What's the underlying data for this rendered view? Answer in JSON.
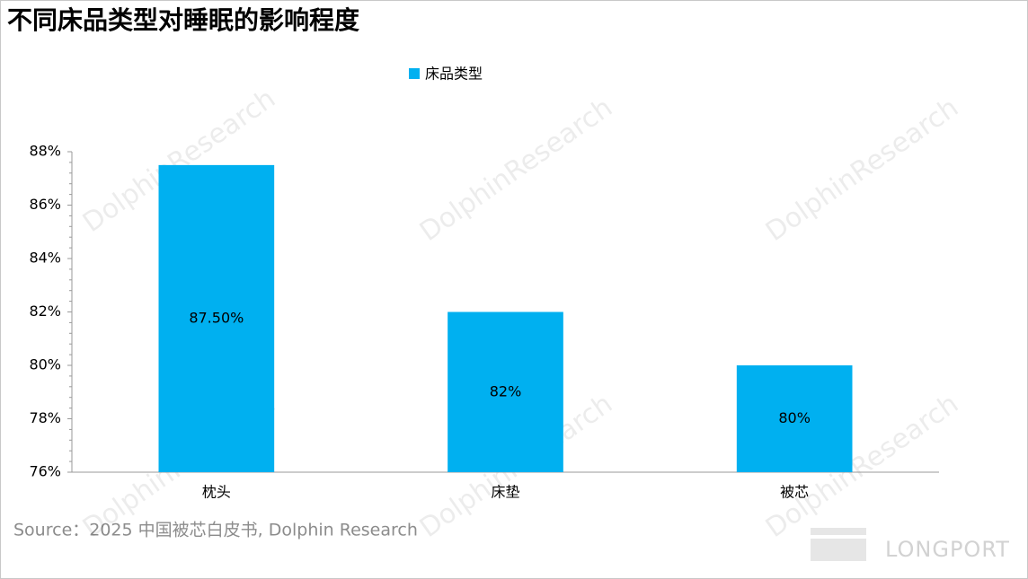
{
  "chart_data": {
    "type": "bar",
    "title": "不同床品类型对睡眠的影响程度",
    "legend": "床品类型",
    "categories": [
      "枕头",
      "床垫",
      "被芯"
    ],
    "values": [
      87.5,
      82,
      80
    ],
    "value_labels": [
      "87.50%",
      "82%",
      "80%"
    ],
    "color": "#00b0f0",
    "ylim": [
      76,
      88
    ],
    "yticks": [
      {
        "value": 76,
        "label": "76%"
      },
      {
        "value": 78,
        "label": "78%"
      },
      {
        "value": 80,
        "label": "80%"
      },
      {
        "value": 82,
        "label": "82%"
      },
      {
        "value": 84,
        "label": "84%"
      },
      {
        "value": 86,
        "label": "86%"
      },
      {
        "value": 88,
        "label": "88%"
      }
    ],
    "grid": false,
    "source": "Source：2025 中国被芯白皮书, Dolphin Research",
    "watermark": "DolphinResearch",
    "logo": "LONGPORT"
  }
}
